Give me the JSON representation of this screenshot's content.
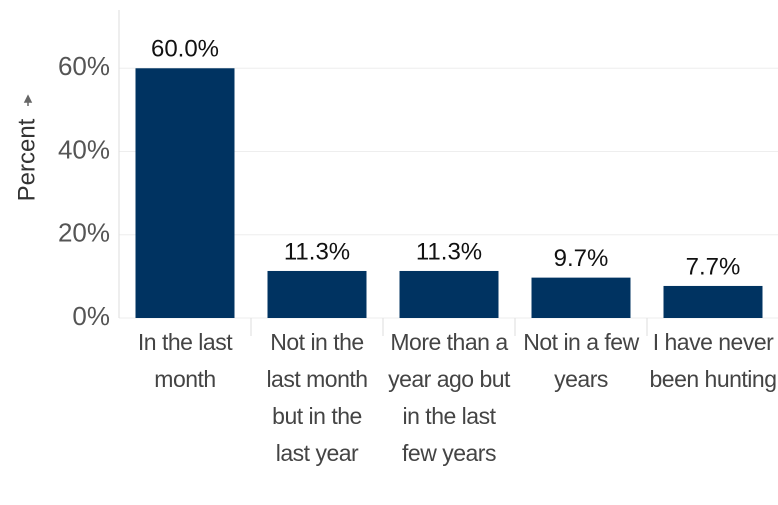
{
  "chart_data": {
    "type": "bar",
    "y_label": "Percent",
    "categories": [
      "In the last month",
      "Not in the last month but in the last year",
      "More than a year ago but in the last few years",
      "Not in a few years",
      "I have never been hunting"
    ],
    "values": [
      60.0,
      11.3,
      11.3,
      9.7,
      7.7
    ],
    "value_labels": [
      "60.0%",
      "11.3%",
      "11.3%",
      "9.7%",
      "7.7%"
    ],
    "color": "#003361",
    "ylim": [
      0,
      74
    ],
    "yticks": [
      {
        "value": 0,
        "label": "0%"
      },
      {
        "value": 20,
        "label": "20%"
      },
      {
        "value": 40,
        "label": "40%"
      },
      {
        "value": 60,
        "label": "60%"
      }
    ],
    "grid": true
  }
}
